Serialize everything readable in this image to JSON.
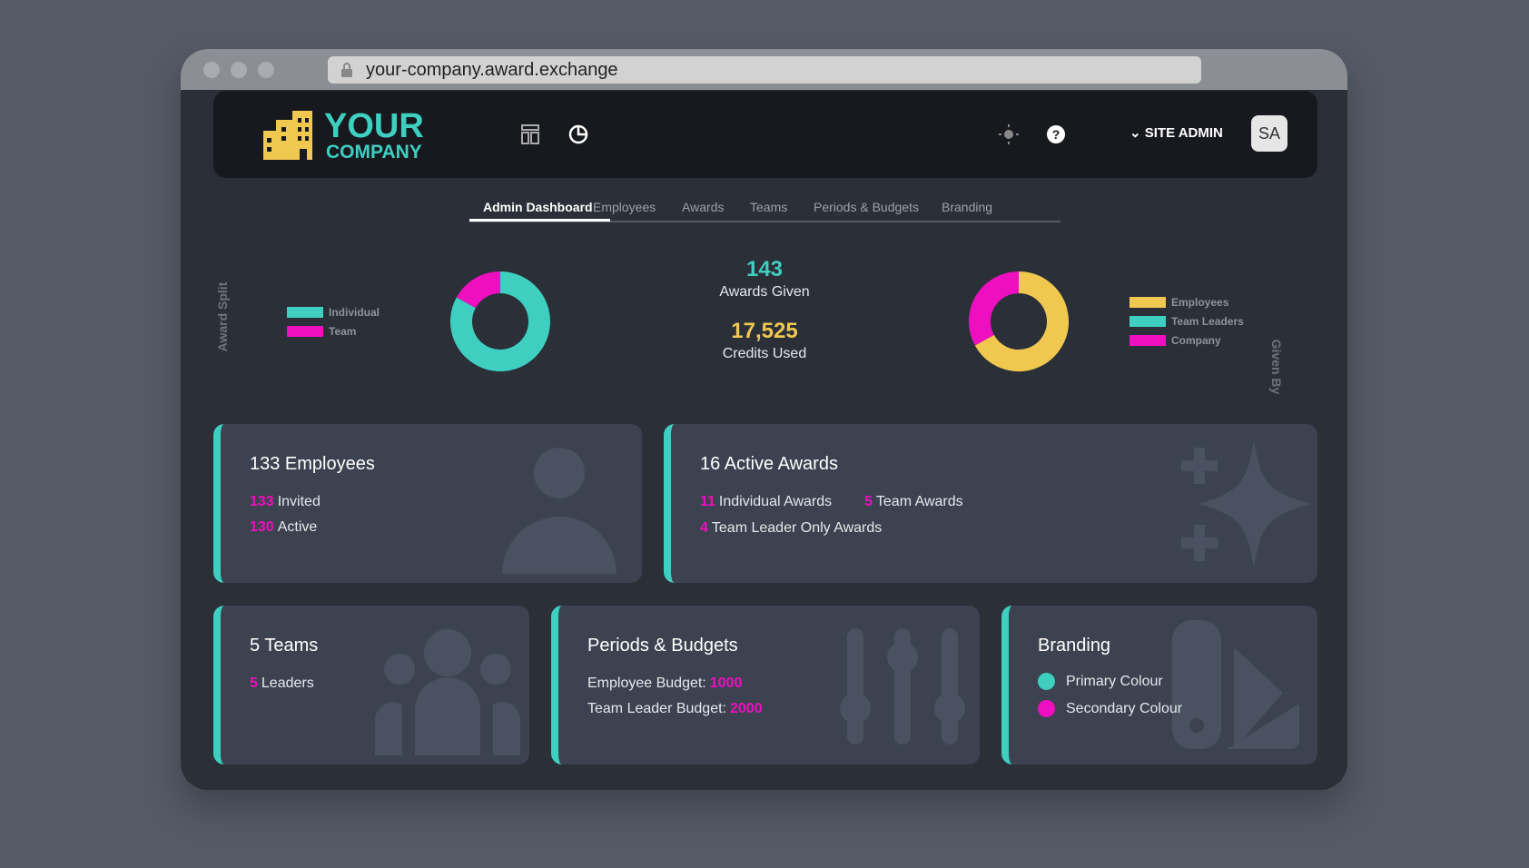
{
  "browser": {
    "url": "your-company.award.exchange"
  },
  "header": {
    "logo_line1": "YOUR",
    "logo_line2": "COMPANY",
    "user_menu": "SITE ADMIN",
    "avatar": "SA"
  },
  "tabs": {
    "items": [
      "Admin Dashboard",
      "Employees",
      "Awards",
      "Teams",
      "Periods & Budgets",
      "Branding"
    ],
    "active": 0
  },
  "chart_data": [
    {
      "type": "pie",
      "title": "Award Split",
      "categories": [
        "Individual",
        "Team"
      ],
      "values": [
        83,
        17
      ],
      "colors": [
        "#3ecfc0",
        "#ee10c0"
      ]
    },
    {
      "type": "pie",
      "title": "Given By",
      "categories": [
        "Employees",
        "Team Leaders",
        "Company"
      ],
      "values": [
        67,
        0,
        33
      ],
      "colors": [
        "#f0c850",
        "#3ecfc0",
        "#ee10c0"
      ]
    }
  ],
  "stats": {
    "awards_value": "143",
    "awards_label": "Awards Given",
    "credits_value": "17,525",
    "credits_label": "Credits Used"
  },
  "cards": {
    "employees": {
      "title": "133 Employees",
      "lines": [
        {
          "number": "133",
          "label": "Invited"
        },
        {
          "number": "130",
          "label": "Active"
        }
      ]
    },
    "awards": {
      "title": "16 Active Awards",
      "lines": [
        {
          "number": "11",
          "label": "Individual Awards"
        },
        {
          "number": "5",
          "label": "Team Awards"
        },
        {
          "number": "4",
          "label": "Team Leader Only Awards"
        }
      ]
    },
    "teams": {
      "title": "5 Teams",
      "lines": [
        {
          "number": "5",
          "label": "Leaders"
        }
      ]
    },
    "periods": {
      "title": "Periods & Budgets",
      "lines": [
        {
          "label": "Employee Budget:",
          "number": "1000"
        },
        {
          "label": "Team Leader Budget:",
          "number": "2000"
        }
      ]
    },
    "branding": {
      "title": "Branding",
      "lines": [
        {
          "label": "Primary Colour",
          "color": "#3ecfc0"
        },
        {
          "label": "Secondary Colour",
          "color": "#ee10c0"
        }
      ]
    }
  }
}
